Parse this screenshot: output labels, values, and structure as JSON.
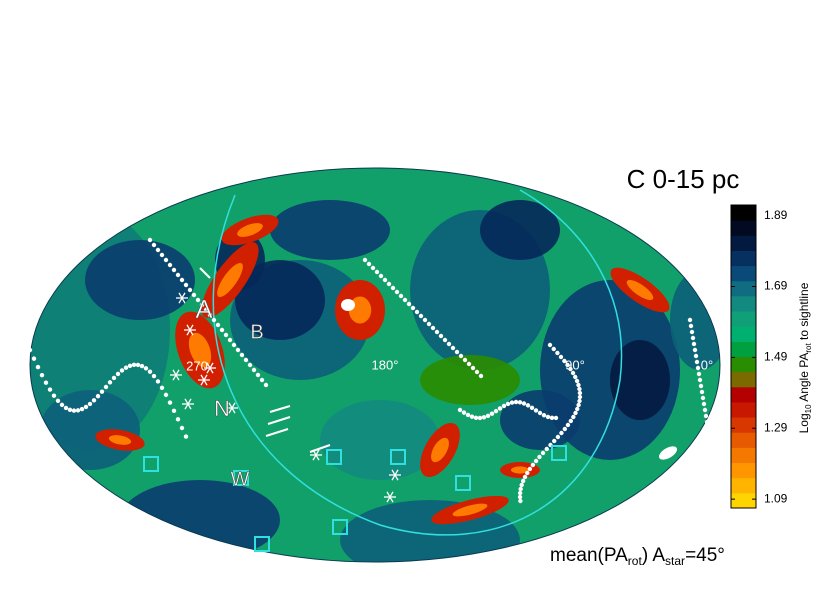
{
  "title": "C  0-15 pc",
  "colorbar": {
    "range": [
      1.065,
      1.92
    ],
    "ticks": [
      1.09,
      1.29,
      1.49,
      1.69,
      1.89
    ],
    "colors": [
      "#ffd400",
      "#ffb400",
      "#ff9600",
      "#f57800",
      "#e85a00",
      "#d83800",
      "#c81800",
      "#b40000",
      "#7a6a00",
      "#2a8c00",
      "#00a040",
      "#00b070",
      "#10a078",
      "#138a80",
      "#106c80",
      "#0a4a78",
      "#063060",
      "#031a40",
      "#010a20",
      "#000000"
    ],
    "label": [
      "Log",
      "10",
      " Angle PA",
      "rot",
      " to sightline"
    ]
  },
  "map_labels": {
    "a": "A",
    "b": "B",
    "n": "N",
    "w": "W",
    "lon180": "180°",
    "lon90": "90°",
    "lon0": "0°",
    "lon270": "270"
  },
  "caption": [
    "mean(PA",
    "rot",
    ")  A",
    "star",
    "=45°"
  ]
}
